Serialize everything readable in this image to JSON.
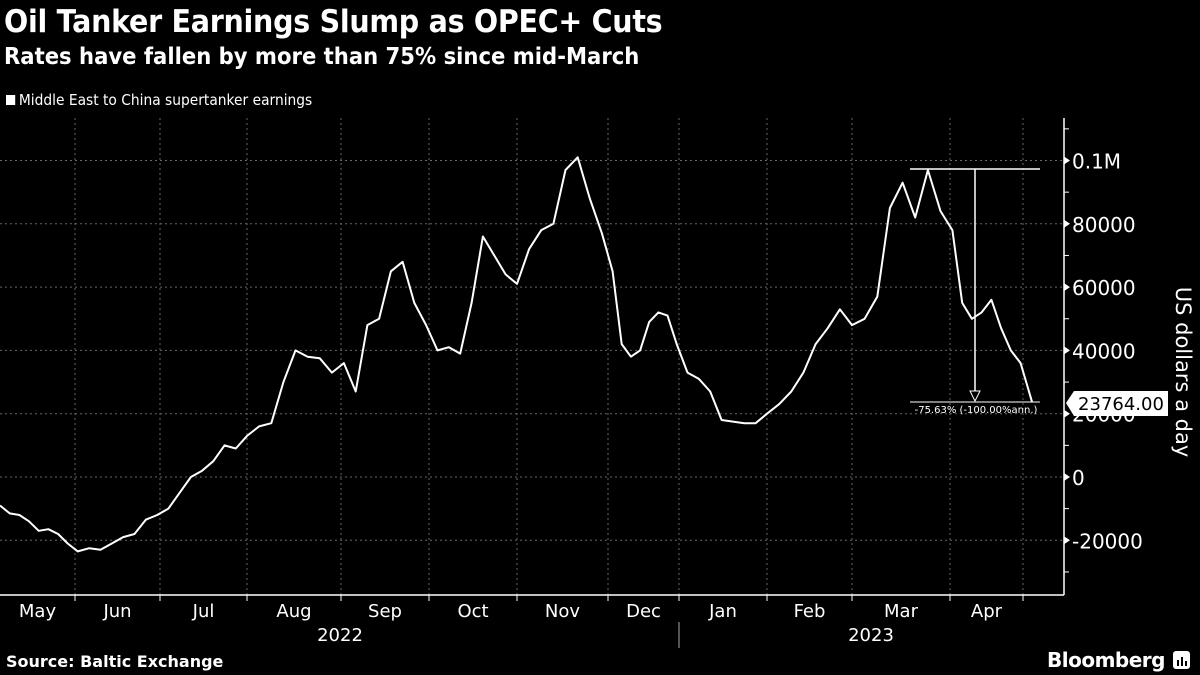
{
  "header": {
    "title": "Oil Tanker Earnings Slump as OPEC+ Cuts",
    "subtitle": "Rates have fallen by more than 75% since mid-March"
  },
  "legend": {
    "items": [
      {
        "label": "Middle East to China supertanker earnings",
        "color": "#ffffff"
      }
    ]
  },
  "footer": {
    "source": "Source: Baltic Exchange",
    "brand": "Bloomberg",
    "brand_icon": "bloomberg-chart-icon"
  },
  "annotation": {
    "change_label": "-75.63% (-100.00%ann.)",
    "last_value_label": "23764.00"
  },
  "axes": {
    "y_label": "US dollars a day",
    "y_ticks": [
      {
        "label": "0.1M",
        "value": 100000
      },
      {
        "label": "80000",
        "value": 80000
      },
      {
        "label": "60000",
        "value": 60000
      },
      {
        "label": "40000",
        "value": 40000
      },
      {
        "label": "20000",
        "value": 20000
      },
      {
        "label": "0",
        "value": 0
      },
      {
        "label": "-20000",
        "value": -20000
      }
    ],
    "x_months": [
      "May",
      "Jun",
      "Jul",
      "Aug",
      "Sep",
      "Oct",
      "Nov",
      "Dec",
      "Jan",
      "Feb",
      "Mar",
      "Apr"
    ],
    "x_years": [
      "2022",
      "2023"
    ]
  },
  "chart_data": {
    "type": "line",
    "title": "Oil Tanker Earnings Slump as OPEC+ Cuts",
    "subtitle": "Rates have fallen by more than 75% since mid-March",
    "xlabel": "",
    "ylabel": "US dollars a day",
    "ylim": [
      -30000,
      112000
    ],
    "grid": true,
    "legend_position": "top-left",
    "x_tick_labels": [
      "May",
      "Jun",
      "Jul",
      "Aug",
      "Sep",
      "Oct",
      "Nov",
      "Dec",
      "Jan",
      "Feb",
      "Mar",
      "Apr"
    ],
    "x_year_labels": [
      "2022",
      "2023"
    ],
    "y_tick_labels": [
      "0.1M",
      "80000",
      "60000",
      "40000",
      "20000",
      "0",
      "-20000"
    ],
    "annotations": [
      {
        "text": "-75.63% (-100.00%ann.)",
        "from": "mid-Mar 2023 peak ~97000",
        "to": "latest 23764"
      },
      {
        "text": "23764.00",
        "type": "last-value-label"
      }
    ],
    "series": [
      {
        "name": "Middle East to China supertanker earnings",
        "x": [
          "2022-05-01",
          "2022-05-05",
          "2022-05-09",
          "2022-05-13",
          "2022-05-17",
          "2022-05-21",
          "2022-05-25",
          "2022-05-29",
          "2022-06-02",
          "2022-06-06",
          "2022-06-10",
          "2022-06-14",
          "2022-06-18",
          "2022-06-22",
          "2022-06-26",
          "2022-06-30",
          "2022-07-04",
          "2022-07-08",
          "2022-07-12",
          "2022-07-16",
          "2022-07-20",
          "2022-07-24",
          "2022-07-28",
          "2022-08-01",
          "2022-08-05",
          "2022-08-09",
          "2022-08-13",
          "2022-08-17",
          "2022-08-21",
          "2022-08-25",
          "2022-08-29",
          "2022-09-02",
          "2022-09-06",
          "2022-09-10",
          "2022-09-14",
          "2022-09-18",
          "2022-09-22",
          "2022-09-26",
          "2022-09-30",
          "2022-10-04",
          "2022-10-08",
          "2022-10-12",
          "2022-10-16",
          "2022-10-20",
          "2022-10-24",
          "2022-10-28",
          "2022-11-01",
          "2022-11-05",
          "2022-11-09",
          "2022-11-13",
          "2022-11-17",
          "2022-11-21",
          "2022-11-25",
          "2022-11-29",
          "2022-12-03",
          "2022-12-07",
          "2022-12-11",
          "2022-12-15",
          "2022-12-19",
          "2022-12-23",
          "2022-12-27",
          "2022-12-31",
          "2023-01-04",
          "2023-01-08",
          "2023-01-12",
          "2023-01-16",
          "2023-01-20",
          "2023-01-24",
          "2023-01-28",
          "2023-02-01",
          "2023-02-05",
          "2023-02-09",
          "2023-02-13",
          "2023-02-17",
          "2023-02-21",
          "2023-02-25",
          "2023-03-01",
          "2023-03-05",
          "2023-03-09",
          "2023-03-13",
          "2023-03-17",
          "2023-03-21",
          "2023-03-25",
          "2023-03-29",
          "2023-04-02",
          "2023-04-06",
          "2023-04-10",
          "2023-04-14",
          "2023-04-18",
          "2023-04-22",
          "2023-04-26",
          "2023-04-30",
          "2023-05-04"
        ],
        "values": [
          -9000,
          -11500,
          -12000,
          -14000,
          -17000,
          -16500,
          -18000,
          -21000,
          -23500,
          -22500,
          -23000,
          -21000,
          -19000,
          -18000,
          -13500,
          -12000,
          -10000,
          -5000,
          0,
          2000,
          5000,
          10000,
          9000,
          13000,
          16000,
          17000,
          30000,
          40000,
          38000,
          37500,
          33000,
          36000,
          27000,
          48000,
          50000,
          65000,
          68000,
          55000,
          48000,
          40000,
          41000,
          39000,
          55000,
          76000,
          70000,
          64000,
          61000,
          72000,
          78000,
          80000,
          97000,
          101000,
          88000,
          77000,
          65000,
          42000,
          38000,
          40000,
          49000,
          52000,
          51000,
          42000,
          33000,
          31000,
          27000,
          18000,
          17500,
          17000,
          17000,
          20000,
          23000,
          27000,
          33000,
          42000,
          47000,
          53000,
          48000,
          50000,
          57000,
          85000,
          93000,
          82000,
          97000,
          84000,
          78000,
          55000,
          50000,
          52000,
          56000,
          47000,
          40000,
          36000,
          23764
        ]
      }
    ]
  }
}
